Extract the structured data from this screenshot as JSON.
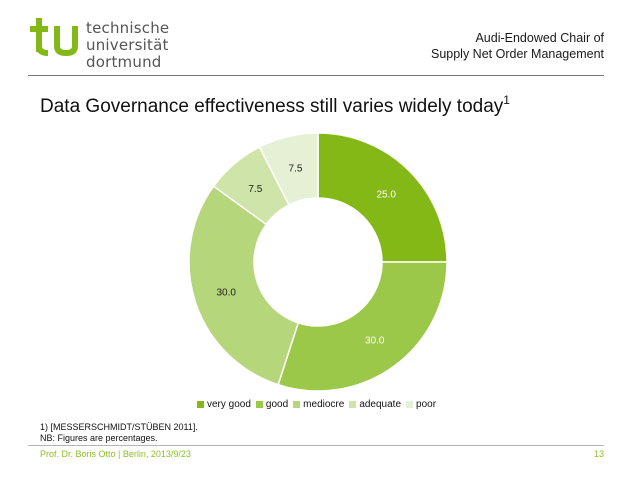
{
  "header": {
    "logo_line1": "technische universität",
    "logo_line2": "dortmund",
    "chair_line1": "Audi-Endowed Chair of",
    "chair_line2": "Supply Net Order Management",
    "brand_color": "#84b817"
  },
  "slide": {
    "title": "Data Governance effectiveness still varies widely today",
    "title_footnote_mark": "1"
  },
  "chart_data": {
    "type": "pie",
    "donut": true,
    "categories": [
      "very good",
      "good",
      "mediocre",
      "adequate",
      "poor"
    ],
    "values": [
      25.0,
      30.0,
      30.0,
      7.5,
      7.5
    ],
    "value_labels": [
      "25.0",
      "30.0",
      "30.0",
      "7.5",
      "7.5"
    ],
    "colors": [
      "#84b817",
      "#9cc84a",
      "#b6d67c",
      "#cfe4a8",
      "#e6f0d4"
    ],
    "legend_position": "bottom"
  },
  "footnotes": {
    "line1": "1)    [MESSERSCHMIDT/STÜBEN 2011].",
    "line2": "NB: Figures are percentages."
  },
  "footer": {
    "author": "Prof. Dr. Boris Otto | Berlin, 2013/9/23",
    "page_number": "13"
  }
}
